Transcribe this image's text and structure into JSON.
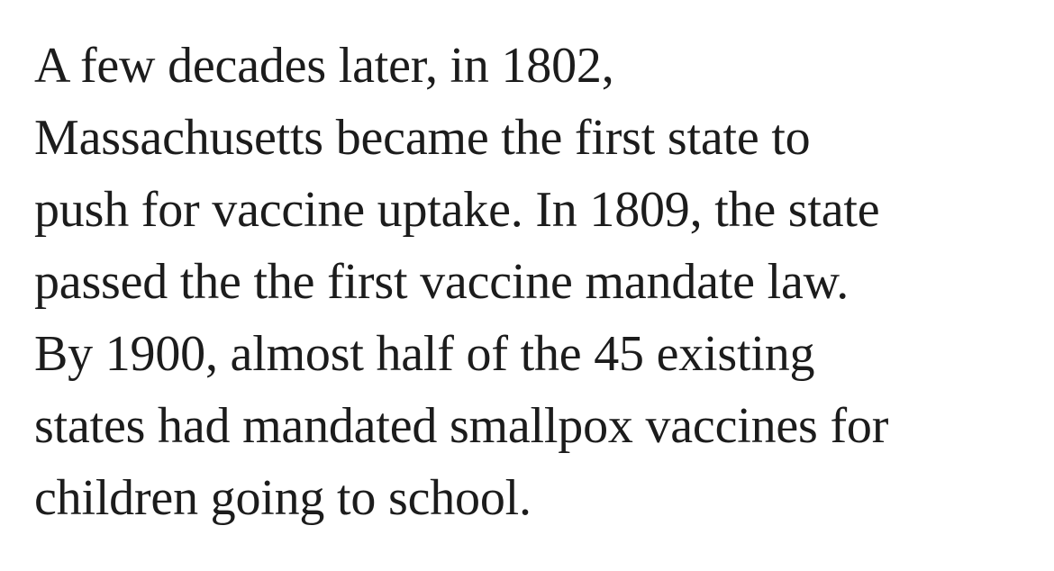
{
  "article": {
    "paragraph_lines": [
      "A few decades later, in 1802,",
      "Massachusetts became the first state to",
      "push for vaccine uptake. In 1809, the state",
      "passed the the first vaccine mandate law.",
      "By 1900, almost half of the 45 existing",
      "states had mandated smallpox vaccines for",
      "children going to school."
    ]
  },
  "colors": {
    "text": "#1c1c1c",
    "background": "#ffffff"
  }
}
